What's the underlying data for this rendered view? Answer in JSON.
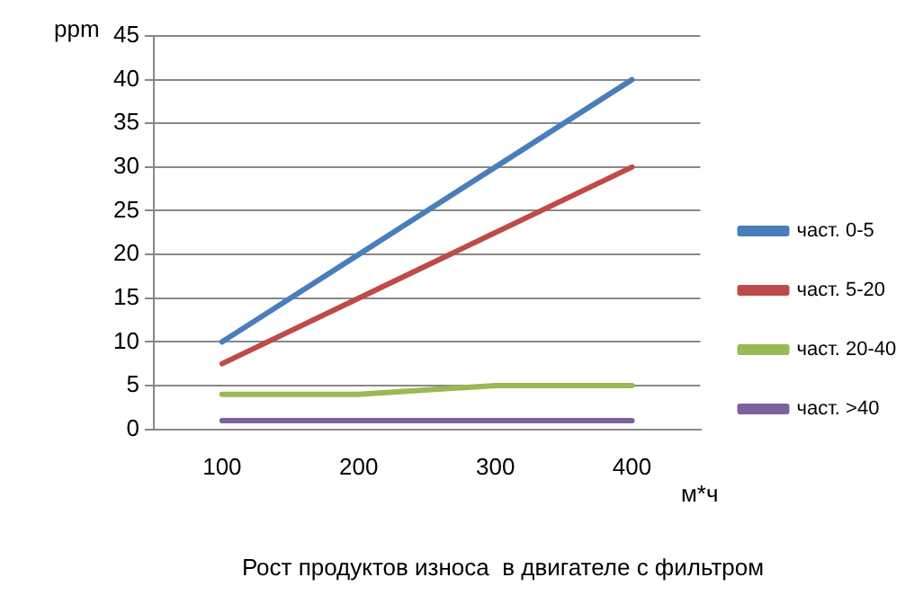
{
  "chart_data": {
    "type": "line",
    "title": "Рост продуктов износа  в двигателе с фильтром",
    "xlabel": "м*ч",
    "ylabel": "ppm",
    "categories": [
      "100",
      "200",
      "300",
      "400"
    ],
    "series": [
      {
        "name": "част. 0-5",
        "color": "#4a7ebb",
        "values": [
          10,
          20,
          30,
          40
        ]
      },
      {
        "name": "част. 5-20",
        "color": "#be4b48",
        "values": [
          7.5,
          15,
          22.5,
          30
        ]
      },
      {
        "name": "част. 20-40",
        "color": "#98b954",
        "values": [
          4,
          4,
          5,
          5
        ]
      },
      {
        "name": "част. >40",
        "color": "#7d60a0",
        "values": [
          1,
          1,
          1,
          1
        ]
      }
    ],
    "ylim": [
      0,
      45
    ],
    "yticks": [
      0,
      5,
      10,
      15,
      20,
      25,
      30,
      35,
      40,
      45
    ],
    "grid": "y",
    "legend": "right",
    "marker": "none"
  }
}
